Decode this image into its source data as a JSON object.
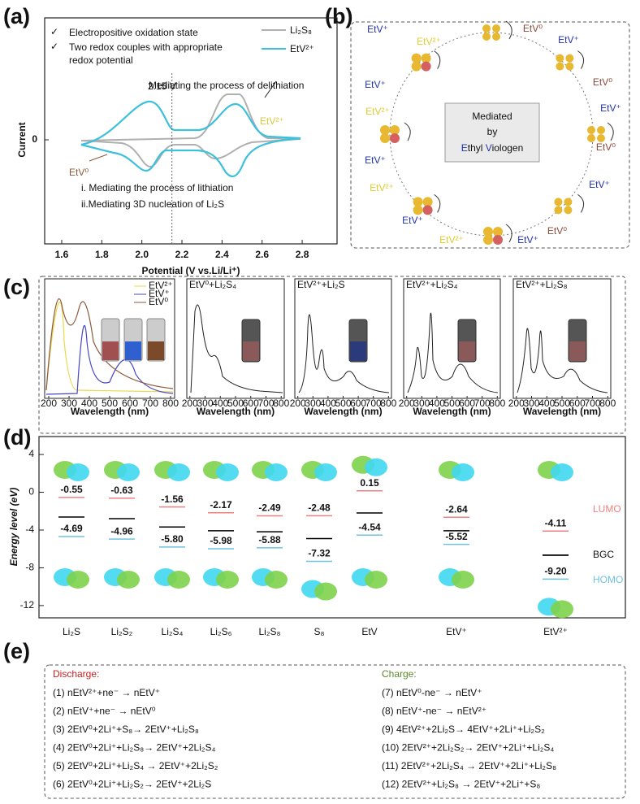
{
  "panel_a": {
    "label": "(a)",
    "bullets": [
      "Electropositive oxidation state",
      "Two redox couples with appropriate",
      "redox potential"
    ],
    "legend": [
      {
        "name": "Li₂S₈",
        "color": "#b0b0b0"
      },
      {
        "name": "EtV²⁺",
        "color": "#3cc0dc"
      }
    ],
    "xlabel": "Potential (V vs.Li/Li⁺)",
    "ylabel": "Current",
    "xlim": [
      1.515,
      2.974
    ],
    "xticks": [
      1.6,
      1.8,
      {
        "value": 2,
        "label": "2.0"
      },
      2.2,
      2.4,
      2.6,
      2.8
    ],
    "yticks": [
      0
    ],
    "marker": {
      "value": 2.15,
      "label": "2.15 V"
    },
    "annotations": [
      "Mediating the process of delithiation",
      "EtV²⁺",
      "EtV⁰",
      "i. Mediating the process of lithiation",
      "ii.Mediating 3D nucleation of Li₂S"
    ]
  },
  "panel_b": {
    "label": "(b)",
    "center": [
      "Mediated",
      "by"
    ],
    "center_name": [
      "E",
      "thyl ",
      "V",
      "iologen"
    ],
    "ring_labels": [
      "EtV⁺",
      "EtV²⁺",
      "EtV⁰",
      "EtV⁺",
      "EtV⁰",
      "EtV⁺",
      "EtV⁰",
      "EtV⁺",
      "EtV⁰",
      "EtV⁺",
      "EtV²⁺",
      "EtV⁺",
      "EtV²⁺",
      "EtV⁺",
      "EtV²⁺",
      "EtV⁺"
    ]
  },
  "panel_c": {
    "label": "(c)",
    "legend": [
      {
        "name": "EtV²⁺",
        "color": "#e8d84a"
      },
      {
        "name": "EtV⁺",
        "color": "#4646c8"
      },
      {
        "name": "EtV⁰",
        "color": "#8b5a3c"
      }
    ],
    "titles": [
      "EtV⁰+Li₂S₄",
      "EtV²⁺+Li₂S",
      "EtV²⁺+Li₂S₄",
      "EtV²⁺+Li₂S₈"
    ],
    "xlabel": "Wavelength (nm)",
    "xlim": [
      180,
      820
    ],
    "xticks": [
      200,
      300,
      400,
      500,
      600,
      700,
      800
    ]
  },
  "panel_d": {
    "label": "(d)",
    "ylabel": "Energy level (eV)",
    "ylim": [
      -13.3,
      5.9
    ],
    "yticks": [
      4,
      0,
      -4,
      -8,
      -12
    ],
    "categories": [
      "Li₂S",
      "Li₂S₂",
      "Li₂S₄",
      "Li₂S₆",
      "Li₂S₈",
      "S₈",
      "EtV",
      "EtV⁺",
      "EtV²⁺"
    ],
    "series": [
      {
        "name": "LUMO",
        "color": "#f08080",
        "values": [
          -0.55,
          -0.63,
          -1.56,
          -2.17,
          -2.49,
          -2.48,
          0.15,
          -2.64,
          -4.11
        ]
      },
      {
        "name": "BGC",
        "color": "#000000"
      },
      {
        "name": "HOMO",
        "color": "#6ec3e0",
        "values": [
          -4.69,
          -4.96,
          -5.8,
          -5.98,
          -5.88,
          -7.32,
          -4.54,
          -5.52,
          -9.2
        ],
        "value_labels": [
          "-4.69",
          "-4.96",
          "-5.80",
          "-5.98",
          "-5.88",
          "-7.32",
          "-4.54",
          "-5.52",
          "-9.20"
        ]
      }
    ]
  },
  "panel_e": {
    "label": "(e)",
    "discharge_title": "Discharge:",
    "discharge": [
      "(1) nEtV²⁺+ne⁻ → nEtV⁺",
      "(2) nEtV⁺+ne⁻ → nEtV⁰",
      "(3) 2EtV⁰+2Li⁺+S₈→ 2EtV⁺+Li₂S₈",
      "(4) 2EtV⁰+2Li⁺+Li₂S₈→ 2EtV⁺+2Li₂S₄",
      "(5) 2EtV⁰+2Li⁺+Li₂S₄ → 2EtV⁺+2Li₂S₂",
      "(6) 2EtV⁰+2Li⁺+Li₂S₂→ 2EtV⁺+2Li₂S"
    ],
    "charge_title": "Charge:",
    "charge": [
      "(7)   nEtV⁰-ne⁻ → nEtV⁺",
      "(8)   nEtV⁺-ne⁻ → nEtV²⁺",
      "(9)   4EtV²⁺+2Li₂S→ 4EtV⁺+2Li⁺+Li₂S₂",
      "(10)  2EtV²⁺+2Li₂S₂→ 2EtV⁺+2Li⁺+Li₂S₄",
      "(11)  2EtV²⁺+2Li₂S₄ → 2EtV⁺+2Li⁺+Li₂S₈",
      "(12)  2EtV²⁺+Li₂S₈ → 2EtV⁺+2Li⁺+S₈"
    ]
  }
}
